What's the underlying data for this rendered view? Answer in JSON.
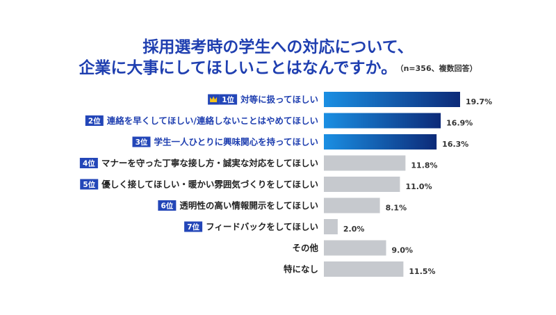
{
  "title_line1": "採用選考時の学生への対応について、",
  "title_line2": "企業に大事にしてほしいことはなんですか。",
  "note": "（n=356、複数回答）",
  "colors": {
    "title": "#1f3fb0",
    "highlight_start": "#1a8fe3",
    "highlight_end": "#0c2a78",
    "gray_bar": "#c6c9ce",
    "rank_badge": "#2346b8"
  },
  "crown_icon": "crown-icon",
  "chart_data": {
    "type": "bar",
    "orientation": "horizontal",
    "unit": "%",
    "categories": [
      "対等に扱ってほしい",
      "連絡を早くしてほしい/連絡しないことはやめてほしい",
      "学生一人ひとりに興味関心を持ってほしい",
      "マナーを守った丁寧な接し方・誠実な対応をしてほしい",
      "優しく接してほしい・暖かい雰囲気づくりをしてほしい",
      "透明性の高い情報開示をしてほしい",
      "フィードバックをしてほしい",
      "その他",
      "特になし"
    ],
    "ranks": [
      "1位",
      "2位",
      "3位",
      "4位",
      "5位",
      "6位",
      "7位",
      "",
      ""
    ],
    "values": [
      19.7,
      16.9,
      16.3,
      11.8,
      11.0,
      8.1,
      2.0,
      9.0,
      11.5
    ],
    "value_labels": [
      "19.7%",
      "16.9%",
      "16.3%",
      "11.8%",
      "11.0%",
      "8.1%",
      "2.0%",
      "9.0%",
      "11.5%"
    ],
    "highlight_count": 3,
    "xlim": [
      0,
      19.7
    ],
    "grid": false,
    "legend": "none"
  }
}
